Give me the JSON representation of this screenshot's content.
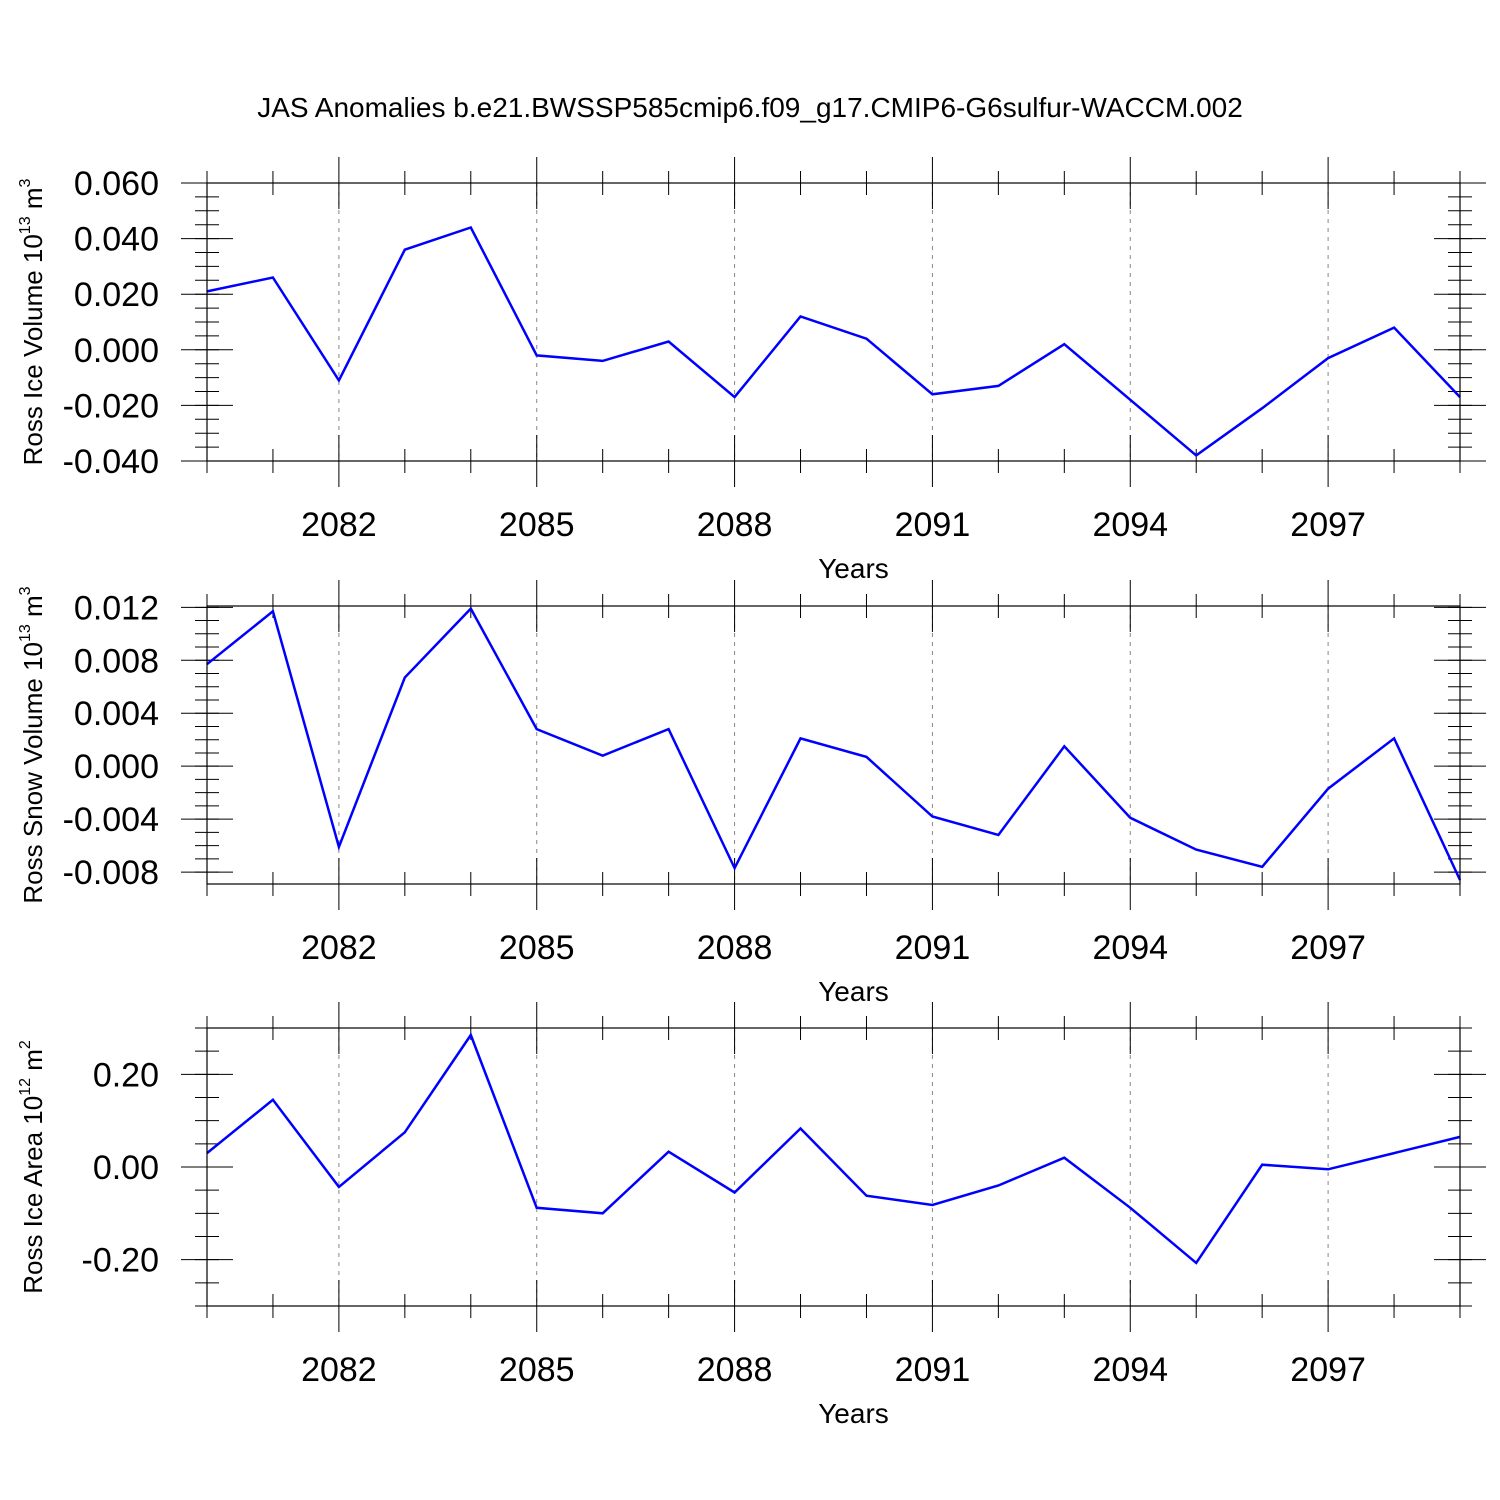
{
  "title": "JAS Anomalies b.e21.BWSSP585cmip6.f09_g17.CMIP6-G6sulfur-WACCM.002",
  "colors": {
    "series": "#0000ff",
    "axis": "#000000",
    "grid": "#888888"
  },
  "chart_data": [
    {
      "type": "line",
      "ylabel": "Ross Ice Volume 10^13 m^3",
      "ylabel_main": "Ross Ice Volume 10",
      "ylabel_exp1": "13",
      "ylabel_unit": "m",
      "ylabel_exp2": "3",
      "xlabel": "Years",
      "xlim": [
        2080,
        2099
      ],
      "ylim": [
        -0.04,
        0.06
      ],
      "yticks": [
        -0.04,
        -0.02,
        0.0,
        0.02,
        0.04,
        0.06
      ],
      "ytick_labels": [
        "-0.040",
        "-0.020",
        "0.000",
        "0.020",
        "0.040",
        "0.060"
      ],
      "yminor_step": 0.005,
      "xticks": [
        2082,
        2085,
        2088,
        2091,
        2094,
        2097
      ],
      "xtick_labels": [
        "2082",
        "2085",
        "2088",
        "2091",
        "2094",
        "2097"
      ],
      "grid": "vertical dashed at major x ticks",
      "x": [
        2080,
        2081,
        2082,
        2083,
        2084,
        2085,
        2086,
        2087,
        2088,
        2089,
        2090,
        2091,
        2092,
        2093,
        2094,
        2095,
        2096,
        2097,
        2098,
        2099
      ],
      "y": [
        0.021,
        0.026,
        -0.011,
        0.036,
        0.044,
        -0.002,
        -0.004,
        0.003,
        -0.017,
        0.012,
        0.004,
        -0.016,
        -0.013,
        0.002,
        -0.018,
        -0.038,
        -0.021,
        -0.003,
        0.008,
        -0.017
      ]
    },
    {
      "type": "line",
      "ylabel": "Ross Snow Volume 10^13 m^3",
      "ylabel_main": "Ross Snow Volume 10",
      "ylabel_exp1": "13",
      "ylabel_unit": "m",
      "ylabel_exp2": "3",
      "xlabel": "Years",
      "xlim": [
        2080,
        2099
      ],
      "ylim": [
        -0.0089,
        0.0121
      ],
      "yticks": [
        -0.008,
        -0.004,
        0.0,
        0.004,
        0.008,
        0.012
      ],
      "ytick_labels": [
        "-0.008",
        "-0.004",
        "0.000",
        "0.004",
        "0.008",
        "0.012"
      ],
      "yminor_step": 0.001,
      "xticks": [
        2082,
        2085,
        2088,
        2091,
        2094,
        2097
      ],
      "xtick_labels": [
        "2082",
        "2085",
        "2088",
        "2091",
        "2094",
        "2097"
      ],
      "grid": "vertical dashed at major x ticks",
      "x": [
        2080,
        2081,
        2082,
        2083,
        2084,
        2085,
        2086,
        2087,
        2088,
        2089,
        2090,
        2091,
        2092,
        2093,
        2094,
        2095,
        2096,
        2097,
        2098,
        2099
      ],
      "y": [
        0.0077,
        0.0117,
        -0.0061,
        0.0067,
        0.0119,
        0.0028,
        0.0008,
        0.0028,
        -0.0077,
        0.0021,
        0.0007,
        -0.0038,
        -0.0052,
        0.0015,
        -0.0039,
        -0.0063,
        -0.0076,
        -0.0017,
        0.0021,
        -0.0086
      ]
    },
    {
      "type": "line",
      "ylabel": "Ross Ice Area 10^12 m^2",
      "ylabel_main": "Ross Ice Area 10",
      "ylabel_exp1": "12",
      "ylabel_unit": "m",
      "ylabel_exp2": "2",
      "xlabel": "Years",
      "xlim": [
        2080,
        2099
      ],
      "ylim": [
        -0.3,
        0.3
      ],
      "yticks": [
        -0.2,
        0.0,
        0.2
      ],
      "ytick_labels": [
        "-0.20",
        "0.00",
        "0.20"
      ],
      "yminor_step": 0.05,
      "xticks": [
        2082,
        2085,
        2088,
        2091,
        2094,
        2097
      ],
      "xtick_labels": [
        "2082",
        "2085",
        "2088",
        "2091",
        "2094",
        "2097"
      ],
      "grid": "vertical dashed at major x ticks",
      "x": [
        2080,
        2081,
        2082,
        2083,
        2084,
        2085,
        2086,
        2087,
        2088,
        2089,
        2090,
        2091,
        2092,
        2093,
        2094,
        2095,
        2096,
        2097,
        2098,
        2099
      ],
      "y": [
        0.03,
        0.145,
        -0.043,
        0.075,
        0.285,
        -0.088,
        -0.1,
        0.033,
        -0.055,
        0.083,
        -0.062,
        -0.082,
        -0.04,
        0.02,
        -0.088,
        -0.207,
        0.005,
        -0.005,
        0.03,
        0.065
      ]
    }
  ]
}
